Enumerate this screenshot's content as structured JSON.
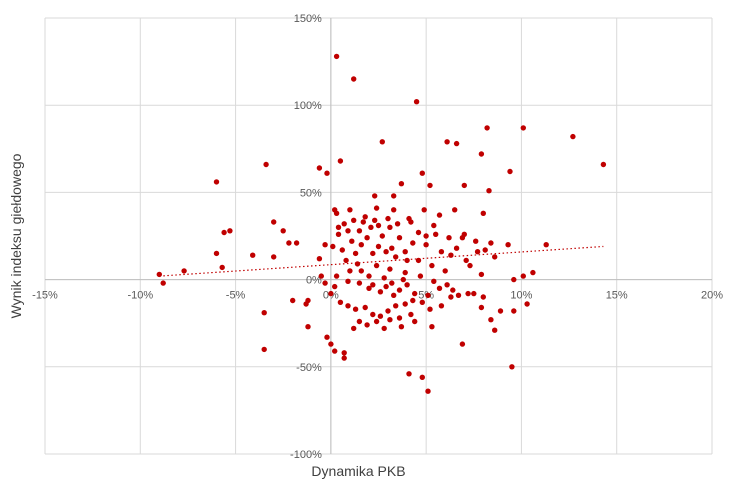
{
  "chart_data": {
    "type": "scatter",
    "title": "",
    "xlabel": "Dynamika PKB",
    "ylabel": "Wynik indeksu giełdowego",
    "xlim": [
      -15,
      20
    ],
    "ylim": [
      -100,
      150
    ],
    "x_ticks": [
      -15,
      -10,
      -5,
      0,
      5,
      10,
      15,
      20
    ],
    "y_ticks": [
      -100,
      -50,
      0,
      50,
      100,
      150
    ],
    "x_tick_labels": [
      "-15%",
      "-10%",
      "-5%",
      "0%",
      "5%",
      "10%",
      "15%",
      "20%"
    ],
    "y_tick_labels": [
      "-100%",
      "-50%",
      "0%",
      "50%",
      "100%",
      "150%"
    ],
    "grid": true,
    "legend": "none",
    "colors": {
      "points": "#c00000",
      "trendline": "#c00000",
      "grid": "#d9d9d9",
      "zero_axis": "#bfbfbf"
    },
    "trendline": {
      "type": "linear",
      "style": "dotted",
      "x": [
        -9,
        14.3
      ],
      "y": [
        2,
        19
      ]
    },
    "series": [
      {
        "points": [
          [
            0.3,
            128
          ],
          [
            1.2,
            115
          ],
          [
            4.5,
            102
          ],
          [
            6.1,
            79
          ],
          [
            6.6,
            78
          ],
          [
            8.2,
            87
          ],
          [
            10.1,
            87
          ],
          [
            12.7,
            82
          ],
          [
            14.3,
            66
          ],
          [
            9.4,
            62
          ],
          [
            3.7,
            55
          ],
          [
            5.2,
            54
          ],
          [
            7.0,
            54
          ],
          [
            8.3,
            51
          ],
          [
            -6.0,
            56
          ],
          [
            -3.4,
            66
          ],
          [
            -0.6,
            64
          ],
          [
            -0.2,
            61
          ],
          [
            0.5,
            68
          ],
          [
            2.7,
            79
          ],
          [
            7.9,
            72
          ],
          [
            4.8,
            61
          ],
          [
            3.3,
            48
          ],
          [
            2.3,
            48
          ],
          [
            0.2,
            40
          ],
          [
            0.3,
            38
          ],
          [
            1.0,
            40
          ],
          [
            2.4,
            41
          ],
          [
            3.3,
            40
          ],
          [
            4.9,
            40
          ],
          [
            5.7,
            37
          ],
          [
            6.5,
            40
          ],
          [
            8.0,
            38
          ],
          [
            1.8,
            36
          ],
          [
            1.2,
            34
          ],
          [
            0.7,
            32
          ],
          [
            0.4,
            30
          ],
          [
            1.5,
            28
          ],
          [
            2.1,
            30
          ],
          [
            2.5,
            31
          ],
          [
            3.1,
            30
          ],
          [
            3.5,
            32
          ],
          [
            4.2,
            33
          ],
          [
            5.0,
            25
          ],
          [
            5.5,
            26
          ],
          [
            6.2,
            24
          ],
          [
            6.9,
            24
          ],
          [
            7.6,
            22
          ],
          [
            8.4,
            21
          ],
          [
            9.3,
            20
          ],
          [
            11.3,
            20
          ],
          [
            -3.0,
            33
          ],
          [
            -2.5,
            28
          ],
          [
            -2.2,
            21
          ],
          [
            -1.8,
            21
          ],
          [
            -5.3,
            28
          ],
          [
            -5.6,
            27
          ],
          [
            -6.0,
            15
          ],
          [
            -4.1,
            14
          ],
          [
            -3.0,
            13
          ],
          [
            -0.3,
            20
          ],
          [
            0.1,
            19
          ],
          [
            0.6,
            17
          ],
          [
            1.3,
            15
          ],
          [
            2.2,
            15
          ],
          [
            2.9,
            16
          ],
          [
            3.4,
            13
          ],
          [
            4.0,
            11
          ],
          [
            4.6,
            11
          ],
          [
            5.3,
            8
          ],
          [
            6.0,
            5
          ],
          [
            7.3,
            8
          ],
          [
            7.9,
            3
          ],
          [
            8.6,
            13
          ],
          [
            9.6,
            0
          ],
          [
            10.6,
            4
          ],
          [
            10.1,
            2
          ],
          [
            -9.0,
            3
          ],
          [
            -8.8,
            -2
          ],
          [
            -7.7,
            5
          ],
          [
            -5.7,
            7
          ],
          [
            -2.0,
            -12
          ],
          [
            -1.3,
            -14
          ],
          [
            -3.5,
            -19
          ],
          [
            -3.5,
            -40
          ],
          [
            0.0,
            -8
          ],
          [
            0.2,
            -4
          ],
          [
            0.5,
            -13
          ],
          [
            0.9,
            -15
          ],
          [
            1.3,
            -17
          ],
          [
            1.8,
            -16
          ],
          [
            2.2,
            -20
          ],
          [
            2.6,
            -21
          ],
          [
            3.0,
            -18
          ],
          [
            3.4,
            -15
          ],
          [
            3.9,
            -14
          ],
          [
            4.3,
            -12
          ],
          [
            4.8,
            -13
          ],
          [
            5.2,
            -17
          ],
          [
            5.8,
            -15
          ],
          [
            6.3,
            -10
          ],
          [
            6.7,
            -9
          ],
          [
            7.2,
            -8
          ],
          [
            7.5,
            -8
          ],
          [
            8.0,
            -10
          ],
          [
            8.4,
            -23
          ],
          [
            8.6,
            -29
          ],
          [
            9.5,
            -50
          ],
          [
            4.1,
            -54
          ],
          [
            4.8,
            -56
          ],
          [
            5.1,
            -64
          ],
          [
            0.7,
            -42
          ],
          [
            0.7,
            -45
          ],
          [
            0.2,
            -41
          ],
          [
            0.0,
            -37
          ],
          [
            -0.2,
            -33
          ],
          [
            -1.2,
            -27
          ],
          [
            1.5,
            -24
          ],
          [
            2.8,
            -28
          ],
          [
            3.6,
            -22
          ],
          [
            4.4,
            -24
          ],
          [
            5.3,
            -27
          ],
          [
            6.9,
            -37
          ],
          [
            1.0,
            5
          ],
          [
            1.6,
            5
          ],
          [
            2.0,
            2
          ],
          [
            2.8,
            1
          ],
          [
            3.2,
            -2
          ],
          [
            3.8,
            0
          ],
          [
            1.1,
            22
          ],
          [
            1.9,
            24
          ],
          [
            2.7,
            25
          ],
          [
            3.6,
            24
          ],
          [
            4.3,
            21
          ],
          [
            5.0,
            20
          ],
          [
            5.8,
            16
          ],
          [
            6.3,
            14
          ],
          [
            7.1,
            11
          ],
          [
            0.8,
            11
          ],
          [
            1.4,
            9
          ],
          [
            2.4,
            8
          ],
          [
            3.1,
            6
          ],
          [
            3.9,
            4
          ],
          [
            4.7,
            2
          ],
          [
            5.4,
            -1
          ],
          [
            6.1,
            -3
          ],
          [
            2.0,
            -5
          ],
          [
            2.6,
            -7
          ],
          [
            3.3,
            -9
          ],
          [
            4.0,
            -3
          ],
          [
            -1.2,
            -12
          ],
          [
            0.4,
            26
          ],
          [
            0.9,
            28
          ],
          [
            1.7,
            33
          ],
          [
            2.3,
            34
          ],
          [
            3.0,
            35
          ],
          [
            4.1,
            35
          ],
          [
            4.6,
            27
          ],
          [
            5.4,
            31
          ],
          [
            7.0,
            26
          ],
          [
            1.6,
            20
          ],
          [
            2.5,
            19
          ],
          [
            3.2,
            18
          ],
          [
            3.9,
            16
          ],
          [
            6.6,
            18
          ],
          [
            7.7,
            16
          ],
          [
            8.1,
            17
          ],
          [
            0.3,
            2
          ],
          [
            0.9,
            -1
          ],
          [
            1.5,
            -2
          ],
          [
            2.2,
            -3
          ],
          [
            2.9,
            -4
          ],
          [
            3.6,
            -6
          ],
          [
            4.4,
            -8
          ],
          [
            5.1,
            -9
          ],
          [
            5.7,
            -5
          ],
          [
            6.4,
            -6
          ],
          [
            -0.5,
            2
          ],
          [
            -0.3,
            -2
          ],
          [
            -0.6,
            12
          ],
          [
            1.2,
            -28
          ],
          [
            1.9,
            -26
          ],
          [
            2.4,
            -24
          ],
          [
            3.1,
            -23
          ],
          [
            3.7,
            -27
          ],
          [
            4.2,
            -20
          ],
          [
            7.9,
            -16
          ],
          [
            8.9,
            -18
          ],
          [
            9.6,
            -18
          ],
          [
            10.3,
            -14
          ]
        ]
      }
    ]
  }
}
